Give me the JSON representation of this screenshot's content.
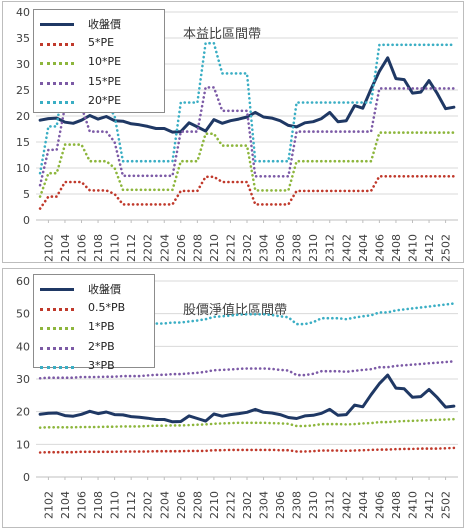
{
  "chart_data": [
    {
      "type": "line",
      "title": "本益比區間帶",
      "categories": [
        "2101",
        "2102",
        "2103",
        "2104",
        "2105",
        "2106",
        "2107",
        "2108",
        "2109",
        "2110",
        "2111",
        "2112",
        "2201",
        "2202",
        "2203",
        "2204",
        "2205",
        "2206",
        "2207",
        "2208",
        "2209",
        "2210",
        "2211",
        "2212",
        "2301",
        "2302",
        "2303",
        "2304",
        "2305",
        "2306",
        "2307",
        "2308",
        "2309",
        "2310",
        "2311",
        "2312",
        "2401",
        "2402",
        "2403",
        "2404",
        "2405",
        "2406",
        "2407",
        "2408",
        "2409",
        "2410",
        "2411",
        "2412",
        "2501",
        "2502",
        "2503"
      ],
      "tick_labels": [
        "2102",
        "2104",
        "2106",
        "2108",
        "2110",
        "2112",
        "2202",
        "2204",
        "2206",
        "2208",
        "2210",
        "2212",
        "2302",
        "2304",
        "2306",
        "2308",
        "2310",
        "2312",
        "2402",
        "2404",
        "2406",
        "2408",
        "2410",
        "2412",
        "2502"
      ],
      "ylim": [
        0,
        40
      ],
      "yticks": [
        "0",
        "5",
        "10",
        "15",
        "20",
        "25",
        "30",
        "35",
        "40"
      ],
      "legend_position": "top-left",
      "series": [
        {
          "name": "收盤價",
          "color": "#1f3864",
          "style": "solid",
          "values": [
            19.2,
            19.5,
            19.6,
            18.8,
            18.6,
            19.2,
            20.1,
            19.4,
            19.9,
            19.1,
            19.0,
            18.5,
            18.3,
            18.0,
            17.6,
            17.6,
            16.9,
            17.0,
            18.7,
            17.9,
            17.1,
            19.3,
            18.6,
            19.1,
            19.4,
            19.8,
            20.7,
            19.8,
            19.6,
            19.1,
            18.2,
            17.9,
            18.7,
            18.9,
            19.5,
            20.7,
            18.9,
            19.1,
            22.0,
            21.5,
            25.2,
            28.6,
            31.2,
            27.2,
            27.0,
            24.4,
            24.6,
            26.8,
            24.3,
            21.4,
            21.7
          ]
        },
        {
          "name": "5*PE",
          "color": "#c0392b",
          "style": "dotted",
          "values": [
            2.2,
            4.5,
            4.5,
            7.3,
            7.3,
            7.3,
            5.7,
            5.7,
            5.7,
            5.0,
            3.0,
            3.0,
            3.0,
            3.0,
            3.0,
            3.0,
            3.0,
            5.6,
            5.6,
            5.6,
            8.3,
            8.3,
            7.3,
            7.3,
            7.3,
            7.3,
            3.0,
            3.0,
            3.0,
            3.0,
            3.0,
            5.6,
            5.6,
            5.6,
            5.6,
            5.6,
            5.6,
            5.6,
            5.6,
            5.6,
            5.6,
            8.4,
            8.4,
            8.4,
            8.4,
            8.4,
            8.4,
            8.4,
            8.4,
            8.4,
            8.4
          ]
        },
        {
          "name": "10*PE",
          "color": "#8db63c",
          "style": "dotted",
          "values": [
            4.5,
            9.0,
            9.0,
            14.5,
            14.5,
            14.5,
            11.3,
            11.3,
            11.3,
            10.0,
            5.8,
            5.8,
            5.8,
            5.8,
            5.8,
            5.8,
            5.8,
            11.3,
            11.3,
            11.3,
            16.6,
            16.6,
            14.3,
            14.3,
            14.3,
            14.3,
            5.7,
            5.7,
            5.7,
            5.7,
            5.7,
            11.3,
            11.3,
            11.3,
            11.3,
            11.3,
            11.3,
            11.3,
            11.3,
            11.3,
            11.3,
            16.8,
            16.8,
            16.8,
            16.8,
            16.8,
            16.8,
            16.8,
            16.8,
            16.8,
            16.8
          ]
        },
        {
          "name": "15*PE",
          "color": "#7c5aa6",
          "style": "dotted",
          "values": [
            6.7,
            13.5,
            13.5,
            21.8,
            21.8,
            21.8,
            17.0,
            17.0,
            17.0,
            15.0,
            8.5,
            8.5,
            8.5,
            8.5,
            8.5,
            8.5,
            8.5,
            17.0,
            17.0,
            17.0,
            25.5,
            25.5,
            21.0,
            21.0,
            21.0,
            21.0,
            8.4,
            8.4,
            8.4,
            8.4,
            8.4,
            17.0,
            17.0,
            17.0,
            17.0,
            17.0,
            17.0,
            17.0,
            17.0,
            17.0,
            17.0,
            25.3,
            25.3,
            25.3,
            25.3,
            25.3,
            25.3,
            25.3,
            25.3,
            25.3,
            25.3
          ]
        },
        {
          "name": "20*PE",
          "color": "#3aaec4",
          "style": "dotted",
          "values": [
            9.0,
            18.0,
            18.0,
            29.0,
            29.0,
            29.0,
            22.6,
            22.6,
            22.6,
            20.0,
            11.3,
            11.3,
            11.3,
            11.3,
            11.3,
            11.3,
            11.3,
            22.6,
            22.6,
            22.6,
            34.0,
            34.0,
            28.2,
            28.2,
            28.2,
            28.2,
            11.3,
            11.3,
            11.3,
            11.3,
            11.3,
            22.6,
            22.6,
            22.6,
            22.6,
            22.6,
            22.6,
            22.6,
            22.6,
            22.6,
            22.6,
            33.7,
            33.7,
            33.7,
            33.7,
            33.7,
            33.7,
            33.7,
            33.7,
            33.7,
            33.7
          ]
        }
      ]
    },
    {
      "type": "line",
      "title": "股價淨值比區間帶",
      "categories": [
        "2101",
        "2102",
        "2103",
        "2104",
        "2105",
        "2106",
        "2107",
        "2108",
        "2109",
        "2110",
        "2111",
        "2112",
        "2201",
        "2202",
        "2203",
        "2204",
        "2205",
        "2206",
        "2207",
        "2208",
        "2209",
        "2210",
        "2211",
        "2212",
        "2301",
        "2302",
        "2303",
        "2304",
        "2305",
        "2306",
        "2307",
        "2308",
        "2309",
        "2310",
        "2311",
        "2312",
        "2401",
        "2402",
        "2403",
        "2404",
        "2405",
        "2406",
        "2407",
        "2408",
        "2409",
        "2410",
        "2411",
        "2412",
        "2501",
        "2502",
        "2503"
      ],
      "tick_labels": [
        "2102",
        "2104",
        "2106",
        "2108",
        "2110",
        "2112",
        "2202",
        "2204",
        "2206",
        "2208",
        "2210",
        "2212",
        "2302",
        "2304",
        "2306",
        "2308",
        "2310",
        "2312",
        "2402",
        "2404",
        "2406",
        "2408",
        "2410",
        "2412",
        "2502"
      ],
      "ylim": [
        0,
        60
      ],
      "yticks": [
        "0",
        "10",
        "20",
        "30",
        "40",
        "50",
        "60"
      ],
      "legend_position": "top-left",
      "series": [
        {
          "name": "收盤價",
          "color": "#1f3864",
          "style": "solid",
          "values": [
            19.2,
            19.5,
            19.6,
            18.8,
            18.6,
            19.2,
            20.1,
            19.4,
            19.9,
            19.1,
            19.0,
            18.5,
            18.3,
            18.0,
            17.6,
            17.6,
            16.9,
            17.0,
            18.7,
            17.9,
            17.1,
            19.3,
            18.6,
            19.1,
            19.4,
            19.8,
            20.7,
            19.8,
            19.6,
            19.1,
            18.2,
            17.9,
            18.7,
            18.9,
            19.5,
            20.7,
            18.9,
            19.1,
            22.0,
            21.5,
            25.2,
            28.6,
            31.2,
            27.2,
            27.0,
            24.4,
            24.6,
            26.8,
            24.3,
            21.4,
            21.7
          ]
        },
        {
          "name": "0.5*PB",
          "color": "#c0392b",
          "style": "dotted",
          "values": [
            7.5,
            7.6,
            7.6,
            7.6,
            7.6,
            7.7,
            7.7,
            7.7,
            7.7,
            7.7,
            7.8,
            7.8,
            7.8,
            7.8,
            7.9,
            7.9,
            7.9,
            7.9,
            8.0,
            8.0,
            8.0,
            8.2,
            8.2,
            8.3,
            8.3,
            8.3,
            8.3,
            8.3,
            8.3,
            8.2,
            8.2,
            7.8,
            7.8,
            7.9,
            8.1,
            8.1,
            8.1,
            8.0,
            8.1,
            8.2,
            8.3,
            8.4,
            8.4,
            8.5,
            8.6,
            8.6,
            8.7,
            8.7,
            8.7,
            8.8,
            8.9
          ]
        },
        {
          "name": "1*PB",
          "color": "#8db63c",
          "style": "dotted",
          "values": [
            15.1,
            15.2,
            15.2,
            15.2,
            15.2,
            15.3,
            15.3,
            15.3,
            15.4,
            15.4,
            15.5,
            15.5,
            15.5,
            15.6,
            15.7,
            15.7,
            15.8,
            15.8,
            15.9,
            16.0,
            16.1,
            16.3,
            16.4,
            16.5,
            16.6,
            16.6,
            16.6,
            16.6,
            16.5,
            16.4,
            16.3,
            15.6,
            15.6,
            15.8,
            16.2,
            16.2,
            16.2,
            16.1,
            16.2,
            16.4,
            16.5,
            16.8,
            16.8,
            17.0,
            17.1,
            17.2,
            17.3,
            17.4,
            17.5,
            17.6,
            17.7
          ]
        },
        {
          "name": "2*PB",
          "color": "#7c5aa6",
          "style": "dotted",
          "values": [
            30.2,
            30.4,
            30.4,
            30.4,
            30.4,
            30.6,
            30.6,
            30.6,
            30.7,
            30.7,
            30.9,
            30.9,
            30.9,
            31.1,
            31.3,
            31.3,
            31.5,
            31.5,
            31.7,
            31.9,
            32.2,
            32.7,
            32.8,
            32.9,
            33.1,
            33.2,
            33.2,
            33.2,
            33.1,
            32.8,
            32.6,
            31.2,
            31.2,
            31.6,
            32.4,
            32.4,
            32.4,
            32.2,
            32.5,
            32.8,
            33.0,
            33.6,
            33.6,
            34.0,
            34.2,
            34.4,
            34.6,
            34.8,
            35.0,
            35.2,
            35.4
          ]
        },
        {
          "name": "3*PB",
          "color": "#3aaec4",
          "style": "dotted",
          "values": [
            45.3,
            45.6,
            45.6,
            45.6,
            45.6,
            45.9,
            45.9,
            45.9,
            46.1,
            46.1,
            46.4,
            46.4,
            46.4,
            46.7,
            47.0,
            47.0,
            47.3,
            47.3,
            47.6,
            47.9,
            48.3,
            49.0,
            49.2,
            49.4,
            49.7,
            49.8,
            49.8,
            49.8,
            49.6,
            49.2,
            48.9,
            46.8,
            46.8,
            47.4,
            48.6,
            48.6,
            48.6,
            48.3,
            48.8,
            49.2,
            49.5,
            50.4,
            50.4,
            51.0,
            51.3,
            51.6,
            51.9,
            52.2,
            52.5,
            52.8,
            53.1
          ]
        }
      ]
    }
  ]
}
